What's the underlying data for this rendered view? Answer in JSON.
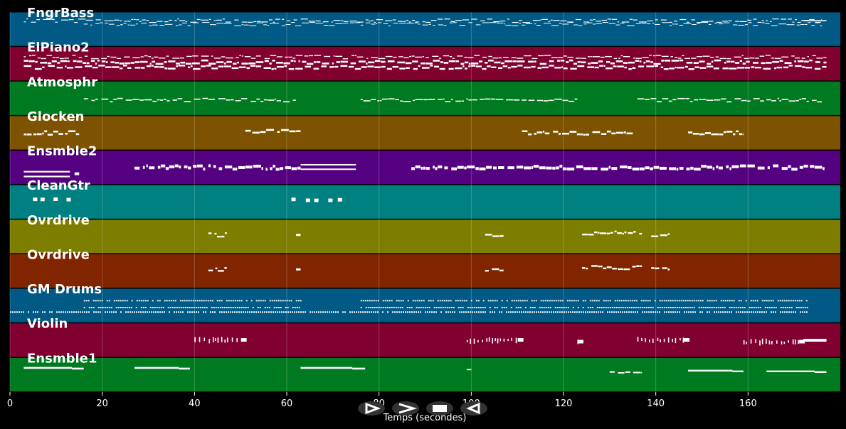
{
  "chart_data": {
    "type": "piano-roll",
    "xlabel": "Temps (secondes)",
    "xlim": [
      0,
      180
    ],
    "xticks": [
      0,
      20,
      40,
      60,
      80,
      100,
      120,
      140,
      160
    ],
    "grid": true,
    "tracks": [
      {
        "name": "FngrBass",
        "color": "#005a85",
        "segments": [
          {
            "start": 3,
            "end": 176,
            "y": 0.25,
            "style": "dense",
            "w": 1.2
          },
          {
            "start": 16,
            "end": 176,
            "y": 0.35,
            "style": "dense",
            "w": 1.0
          },
          {
            "start": 172,
            "end": 177,
            "y": 0.25,
            "style": "solid",
            "w": 1.6
          }
        ]
      },
      {
        "name": "ElPiano2",
        "color": "#800030",
        "segments": [
          {
            "start": 3,
            "end": 177,
            "y": 0.45,
            "style": "dense",
            "w": 2.6
          },
          {
            "start": 3,
            "end": 177,
            "y": 0.6,
            "style": "dense",
            "w": 2.4
          },
          {
            "start": 3,
            "end": 177,
            "y": 0.3,
            "style": "dense",
            "w": 1.4
          }
        ]
      },
      {
        "name": "Atmosphr",
        "color": "#007a20",
        "segments": [
          {
            "start": 16,
            "end": 62,
            "y": 0.55,
            "style": "dense",
            "w": 1.6
          },
          {
            "start": 76,
            "end": 123,
            "y": 0.55,
            "style": "dense",
            "w": 1.6
          },
          {
            "start": 136,
            "end": 176,
            "y": 0.55,
            "style": "dense",
            "w": 1.6
          }
        ]
      },
      {
        "name": "Glocken",
        "color": "#7d5200",
        "segments": [
          {
            "start": 3,
            "end": 15,
            "y": 0.5,
            "style": "dense",
            "w": 2.6
          },
          {
            "start": 51,
            "end": 63,
            "y": 0.45,
            "style": "dense",
            "w": 2.6
          },
          {
            "start": 111,
            "end": 135,
            "y": 0.5,
            "style": "dense",
            "w": 2.6
          },
          {
            "start": 147,
            "end": 159,
            "y": 0.5,
            "style": "dense",
            "w": 2.6
          }
        ]
      },
      {
        "name": "Ensmble2",
        "color": "#550080",
        "segments": [
          {
            "start": 3,
            "end": 13,
            "y": 0.62,
            "style": "solid",
            "w": 2.2
          },
          {
            "start": 3,
            "end": 13,
            "y": 0.76,
            "style": "solid",
            "w": 2.2
          },
          {
            "start": 14,
            "end": 15,
            "y": 0.68,
            "style": "solid",
            "w": 4.0
          },
          {
            "start": 27,
            "end": 63,
            "y": 0.5,
            "style": "dense",
            "w": 4.0
          },
          {
            "start": 63,
            "end": 75,
            "y": 0.42,
            "style": "solid",
            "w": 2.0
          },
          {
            "start": 63,
            "end": 75,
            "y": 0.55,
            "style": "solid",
            "w": 2.0
          },
          {
            "start": 87,
            "end": 177,
            "y": 0.5,
            "style": "dense",
            "w": 4.0
          }
        ]
      },
      {
        "name": "CleanGtr",
        "color": "#008080",
        "segments": [
          {
            "start": 5,
            "end": 14,
            "y": 0.42,
            "style": "sparse",
            "w": 4.0
          },
          {
            "start": 61,
            "end": 74,
            "y": 0.42,
            "style": "sparse",
            "w": 4.0
          }
        ]
      },
      {
        "name": "Ovrdrive",
        "color": "#7d7d00",
        "segments": [
          {
            "start": 43,
            "end": 47,
            "y": 0.45,
            "style": "dense",
            "w": 2.4
          },
          {
            "start": 62,
            "end": 63,
            "y": 0.45,
            "style": "solid",
            "w": 3.0
          },
          {
            "start": 103,
            "end": 107,
            "y": 0.45,
            "style": "dense",
            "w": 2.4
          },
          {
            "start": 124,
            "end": 137,
            "y": 0.4,
            "style": "dense",
            "w": 2.4
          },
          {
            "start": 139,
            "end": 143,
            "y": 0.45,
            "style": "dense",
            "w": 2.4
          }
        ]
      },
      {
        "name": "Ovrdrive",
        "color": "#802500",
        "segments": [
          {
            "start": 43,
            "end": 47,
            "y": 0.45,
            "style": "dense",
            "w": 2.4
          },
          {
            "start": 62,
            "end": 63,
            "y": 0.45,
            "style": "solid",
            "w": 3.0
          },
          {
            "start": 103,
            "end": 107,
            "y": 0.45,
            "style": "dense",
            "w": 2.4
          },
          {
            "start": 124,
            "end": 137,
            "y": 0.4,
            "style": "dense",
            "w": 2.4
          },
          {
            "start": 139,
            "end": 143,
            "y": 0.45,
            "style": "dense",
            "w": 2.4
          }
        ]
      },
      {
        "name": "GM Drums",
        "color": "#005a85",
        "segments": [
          {
            "start": 0,
            "end": 173,
            "y": 0.68,
            "style": "drum",
            "w": 1.6
          },
          {
            "start": 16,
            "end": 63,
            "y": 0.55,
            "style": "drum",
            "w": 1.4
          },
          {
            "start": 16,
            "end": 63,
            "y": 0.35,
            "style": "drum",
            "w": 1.4
          },
          {
            "start": 76,
            "end": 173,
            "y": 0.55,
            "style": "drum",
            "w": 1.4
          },
          {
            "start": 76,
            "end": 173,
            "y": 0.35,
            "style": "drum",
            "w": 1.4
          }
        ]
      },
      {
        "name": "Violin",
        "color": "#800030",
        "segments": [
          {
            "start": 40,
            "end": 51,
            "y": 0.5,
            "style": "violin",
            "w": 3.0
          },
          {
            "start": 99,
            "end": 111,
            "y": 0.5,
            "style": "violin",
            "w": 3.0
          },
          {
            "start": 123,
            "end": 124,
            "y": 0.55,
            "style": "violin",
            "w": 3.0
          },
          {
            "start": 136,
            "end": 147,
            "y": 0.5,
            "style": "violin",
            "w": 3.0
          },
          {
            "start": 159,
            "end": 172,
            "y": 0.55,
            "style": "violin",
            "w": 3.0
          },
          {
            "start": 172,
            "end": 177,
            "y": 0.5,
            "style": "solid",
            "w": 4.0
          }
        ]
      },
      {
        "name": "Ensmble1",
        "color": "#007a20",
        "segments": [
          {
            "start": 3,
            "end": 16,
            "y": 0.3,
            "style": "long",
            "w": 2.6
          },
          {
            "start": 27,
            "end": 39,
            "y": 0.3,
            "style": "long",
            "w": 2.6
          },
          {
            "start": 63,
            "end": 77,
            "y": 0.3,
            "style": "long",
            "w": 2.6
          },
          {
            "start": 99,
            "end": 100,
            "y": 0.35,
            "style": "solid",
            "w": 1.6
          },
          {
            "start": 130,
            "end": 137,
            "y": 0.45,
            "style": "dense",
            "w": 2.0
          },
          {
            "start": 147,
            "end": 159,
            "y": 0.38,
            "style": "long",
            "w": 2.4
          },
          {
            "start": 164,
            "end": 177,
            "y": 0.4,
            "style": "long",
            "w": 2.4
          }
        ]
      }
    ]
  },
  "controls": {
    "play_label": "Lecture",
    "pause_label": "Pause",
    "stop_label": "Stop",
    "rewind_label": "Retour"
  }
}
